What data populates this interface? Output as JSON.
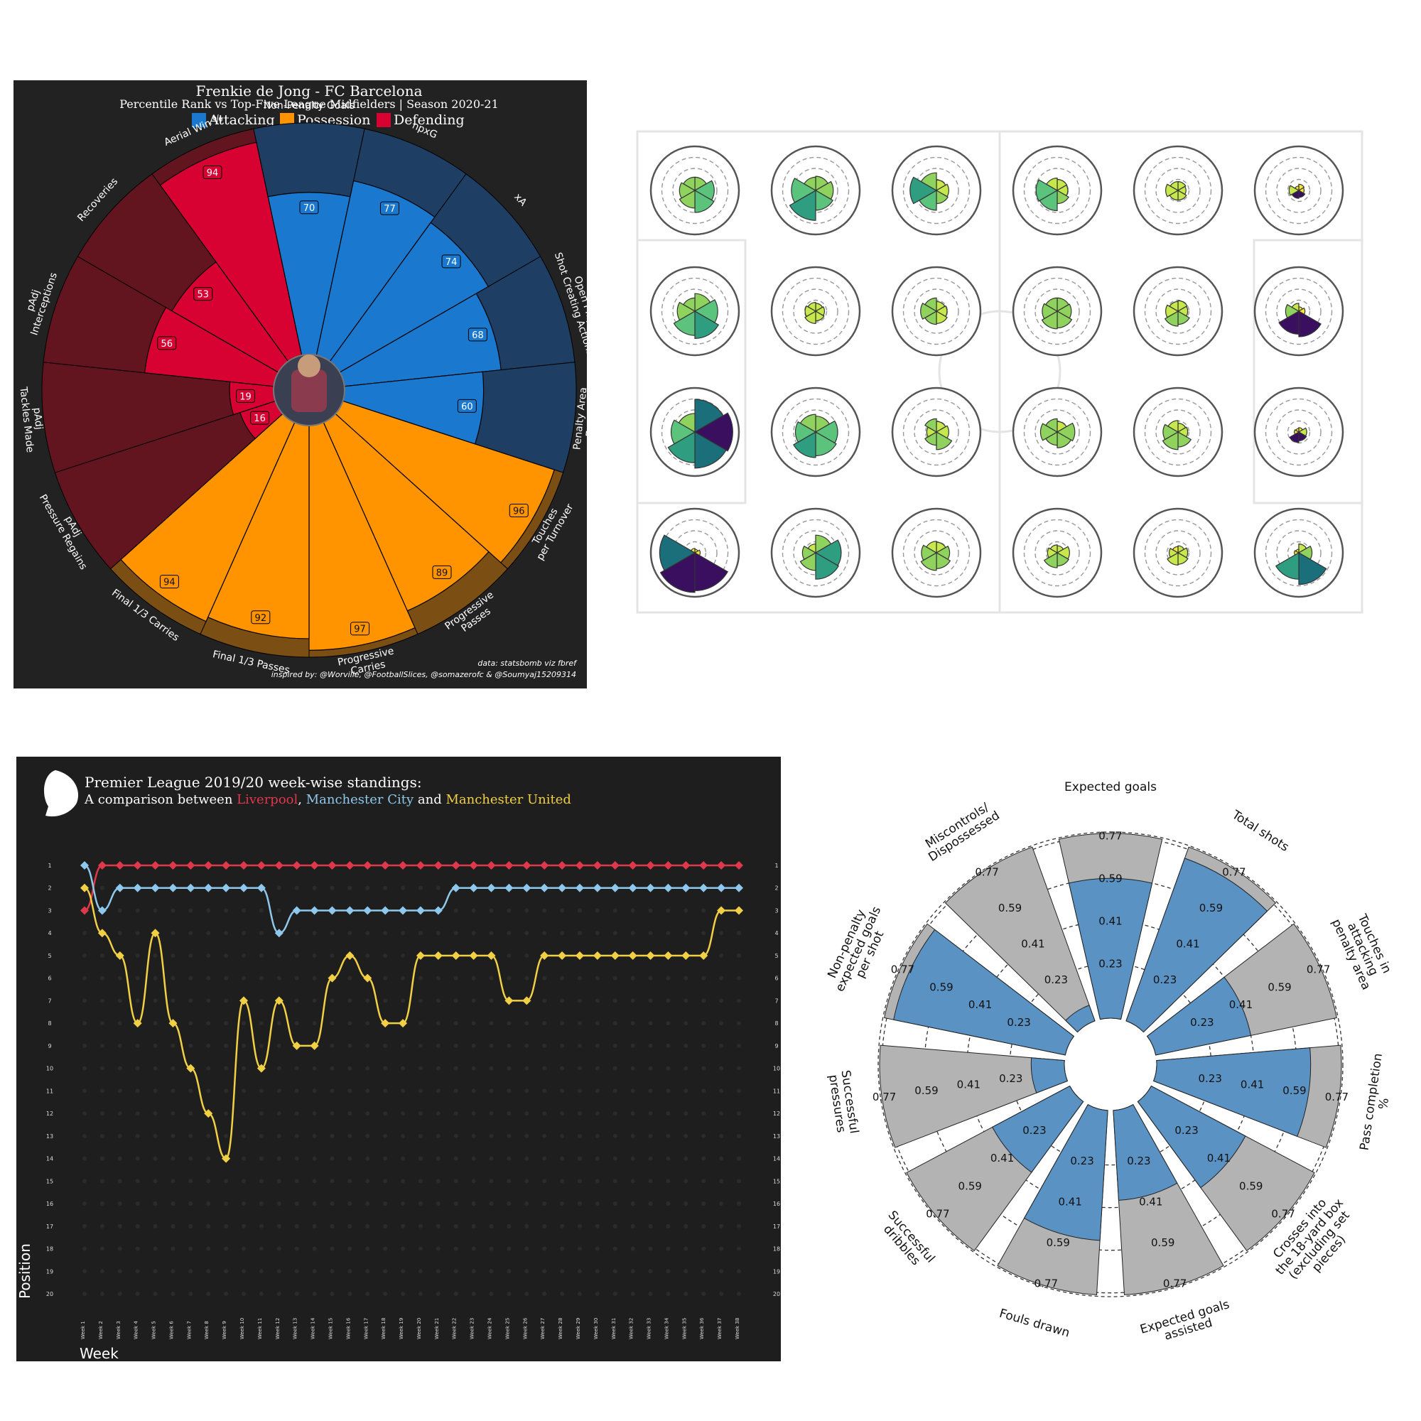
{
  "chart_data": [
    {
      "type": "radial-bar",
      "title": "Frenkie de Jong - FC Barcelona",
      "subtitle": "Percentile Rank vs Top-Five League Midfielders | Season 2020-21",
      "legend": [
        {
          "label": "Attacking",
          "color": "#1a78cf"
        },
        {
          "label": "Possession",
          "color": "#ff9300"
        },
        {
          "label": "Defending",
          "color": "#d70232"
        }
      ],
      "background_colors": {
        "Attacking": "#1f3e63",
        "Possession": "#7b4e14",
        "Defending": "#62141f"
      },
      "categories": [
        {
          "label": "Non-Penalty Goals",
          "value": 70,
          "group": "Attacking"
        },
        {
          "label": "npxG",
          "value": 77,
          "group": "Attacking"
        },
        {
          "label": "xA",
          "value": 74,
          "group": "Attacking"
        },
        {
          "label": "Open Play\nShot Creating Actions",
          "value": 68,
          "group": "Attacking"
        },
        {
          "label": "Penalty Area\nEntries",
          "value": 60,
          "group": "Attacking"
        },
        {
          "label": "Touches\nper Turnover",
          "value": 96,
          "group": "Possession"
        },
        {
          "label": "Progressive\nPasses",
          "value": 89,
          "group": "Possession"
        },
        {
          "label": "Progressive\nCarries",
          "value": 97,
          "group": "Possession"
        },
        {
          "label": "Final 1/3 Passes",
          "value": 92,
          "group": "Possession"
        },
        {
          "label": "Final 1/3 Carries",
          "value": 94,
          "group": "Possession"
        },
        {
          "label": "pAdj\nPressure Regains",
          "value": 16,
          "group": "Defending"
        },
        {
          "label": "pAdj\nTackles Made",
          "value": 19,
          "group": "Defending"
        },
        {
          "label": "pAdj\nInterceptions",
          "value": 56,
          "group": "Defending"
        },
        {
          "label": "Recoveries",
          "value": 53,
          "group": "Defending"
        },
        {
          "label": "Aerial Win %",
          "value": 94,
          "group": "Defending"
        }
      ],
      "footer": [
        "data: statsbomb viz fbref",
        "inspired by: @Worville, @FootballSlices, @somazerofc & @Soumyaj15209314"
      ],
      "ylim": [
        0,
        100
      ]
    },
    {
      "type": "pitch-radar-grid",
      "rows": 4,
      "cols": 6,
      "cells": [
        [
          [
            0.3,
            0.44,
            0.5,
            0.4,
            0.35,
            0.3
          ],
          [
            0.32,
            0.4,
            0.45,
            0.68,
            0.55,
            0.3
          ],
          [
            0.24,
            0.28,
            0.3,
            0.45,
            0.6,
            0.4
          ],
          [
            0.25,
            0.24,
            0.3,
            0.46,
            0.48,
            0.28
          ],
          [
            0.2,
            0.18,
            0.22,
            0.22,
            0.28,
            0.2
          ],
          [
            0.14,
            0.12,
            0.16,
            0.18,
            0.22,
            0.1
          ]
        ],
        [
          [
            0.4,
            0.52,
            0.62,
            0.55,
            0.4,
            0.3
          ],
          [
            0.18,
            0.2,
            0.22,
            0.28,
            0.24,
            0.2
          ],
          [
            0.22,
            0.24,
            0.28,
            0.3,
            0.36,
            0.3
          ],
          [
            0.3,
            0.32,
            0.38,
            0.4,
            0.34,
            0.3
          ],
          [
            0.24,
            0.22,
            0.3,
            0.34,
            0.28,
            0.22
          ],
          [
            0.1,
            0.14,
            0.58,
            0.52,
            0.3,
            0.18
          ]
        ],
        [
          [
            0.74,
            0.86,
            0.82,
            0.7,
            0.54,
            0.42
          ],
          [
            0.36,
            0.5,
            0.54,
            0.58,
            0.46,
            0.4
          ],
          [
            0.24,
            0.28,
            0.4,
            0.3,
            0.22,
            0.3
          ],
          [
            0.24,
            0.4,
            0.36,
            0.3,
            0.38,
            0.3
          ],
          [
            0.2,
            0.22,
            0.34,
            0.4,
            0.34,
            0.26
          ],
          [
            0.1,
            0.18,
            0.2,
            0.24,
            0.1,
            0.08
          ]
        ],
        [
          [
            0.08,
            0.12,
            0.86,
            0.9,
            0.8,
            0.1
          ],
          [
            0.4,
            0.58,
            0.6,
            0.4,
            0.3,
            0.2
          ],
          [
            0.24,
            0.3,
            0.36,
            0.4,
            0.34,
            0.26
          ],
          [
            0.16,
            0.28,
            0.3,
            0.34,
            0.22,
            0.18
          ],
          [
            0.16,
            0.22,
            0.26,
            0.28,
            0.2,
            0.14
          ],
          [
            0.2,
            0.3,
            0.72,
            0.6,
            0.1,
            0.08
          ]
        ]
      ]
    },
    {
      "type": "line",
      "title": "Premier League 2019/20 week-wise standings:",
      "subtitle_prefix": "A comparison between ",
      "subtitle_parts": [
        {
          "text": "Liverpool",
          "color": "#e0384b"
        },
        {
          "text": ", ",
          "color": "#ffffff"
        },
        {
          "text": "Manchester City",
          "color": "#8ec8ec"
        },
        {
          "text": " and ",
          "color": "#ffffff"
        },
        {
          "text": "Manchester United",
          "color": "#f2d045"
        }
      ],
      "xlabel": "Week",
      "ylabel": "Position",
      "x": [
        "Week 1",
        "Week 2",
        "Week 3",
        "Week 4",
        "Week 5",
        "Week 6",
        "Week 7",
        "Week 8",
        "Week 9",
        "Week 10",
        "Week 11",
        "Week 12",
        "Week 13",
        "Week 14",
        "Week 15",
        "Week 16",
        "Week 17",
        "Week 18",
        "Week 19",
        "Week 20",
        "Week 21",
        "Week 22",
        "Week 23",
        "Week 24",
        "Week 25",
        "Week 26",
        "Week 27",
        "Week 28",
        "Week 29",
        "Week 30",
        "Week 31",
        "Week 32",
        "Week 33",
        "Week 34",
        "Week 35",
        "Week 36",
        "Week 37",
        "Week 38"
      ],
      "ylim": [
        1,
        20
      ],
      "series": [
        {
          "name": "Liverpool",
          "color": "#e0384b",
          "values": [
            3,
            1,
            1,
            1,
            1,
            1,
            1,
            1,
            1,
            1,
            1,
            1,
            1,
            1,
            1,
            1,
            1,
            1,
            1,
            1,
            1,
            1,
            1,
            1,
            1,
            1,
            1,
            1,
            1,
            1,
            1,
            1,
            1,
            1,
            1,
            1,
            1,
            1
          ]
        },
        {
          "name": "Manchester City",
          "color": "#8ec8ec",
          "values": [
            1,
            3,
            2,
            2,
            2,
            2,
            2,
            2,
            2,
            2,
            2,
            4,
            3,
            3,
            3,
            3,
            3,
            3,
            3,
            3,
            3,
            2,
            2,
            2,
            2,
            2,
            2,
            2,
            2,
            2,
            2,
            2,
            2,
            2,
            2,
            2,
            2,
            2
          ]
        },
        {
          "name": "Manchester United",
          "color": "#f2d045",
          "values": [
            2,
            4,
            5,
            8,
            4,
            8,
            10,
            12,
            14,
            7,
            10,
            7,
            9,
            9,
            6,
            5,
            6,
            8,
            8,
            5,
            5,
            5,
            5,
            5,
            7,
            7,
            5,
            5,
            5,
            5,
            5,
            5,
            5,
            5,
            5,
            5,
            3,
            3
          ]
        }
      ]
    },
    {
      "type": "pizza",
      "categories": [
        {
          "label": "Expected goals",
          "value": 0.59
        },
        {
          "label": "Total shots",
          "value": 0.73
        },
        {
          "label": "Touches in\nattacking\npenalty area",
          "value": 0.41
        },
        {
          "label": "Pass completion\n%",
          "value": 0.65
        },
        {
          "label": "Crosses into\nthe 18-yard box\n(excluding set\npieces)",
          "value": 0.45
        },
        {
          "label": "Expected goals\nassisted",
          "value": 0.38
        },
        {
          "label": "Fouls drawn",
          "value": 0.55
        },
        {
          "label": "Successful\ndribbles",
          "value": 0.37
        },
        {
          "label": "Successful\npressures",
          "value": 0.14
        },
        {
          "label": "Non-penalty\nexpected goals\nper shot",
          "value": 0.74
        },
        {
          "label": "Miscontrols/\nDispossessed",
          "value": 0.07
        }
      ],
      "rings": [
        0.23,
        0.41,
        0.59,
        0.77
      ],
      "ylim": [
        0,
        0.78
      ]
    }
  ]
}
